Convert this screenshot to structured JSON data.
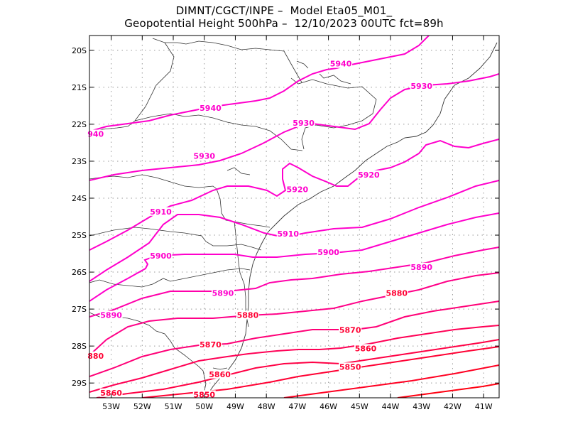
{
  "title": {
    "line1": "DIMNT/CGCT/INPE –  Model Eta05_M01_",
    "line2": "Geopotential Height 500hPa –  12/10/2023 00UTC fct=89h"
  },
  "map": {
    "lon_range": [
      -53.7,
      -40.5
    ],
    "lat_range": [
      -29.4,
      -19.6
    ],
    "lat_ticks": [
      "20S",
      "21S",
      "22S",
      "23S",
      "24S",
      "25S",
      "26S",
      "27S",
      "28S",
      "29S"
    ],
    "lon_ticks": [
      "53W",
      "52W",
      "51W",
      "50W",
      "49W",
      "48W",
      "47W",
      "46W",
      "45W",
      "44W",
      "43W",
      "42W",
      "41W"
    ],
    "grid": "dotted",
    "contour_color_high": "#ff00cc",
    "contour_color_low": "#ff0033",
    "coast_color": "#333333"
  },
  "contour_labels": [
    {
      "text": "5940",
      "lon": -45.6,
      "lat": -20.4
    },
    {
      "text": "5940",
      "lon": -49.8,
      "lat": -21.6
    },
    {
      "text": "940",
      "lon": -53.5,
      "lat": -22.3
    },
    {
      "text": "5930",
      "lon": -43.0,
      "lat": -21.0
    },
    {
      "text": "5930",
      "lon": -46.8,
      "lat": -22.0
    },
    {
      "text": "5930",
      "lon": -50.0,
      "lat": -22.9
    },
    {
      "text": "5920",
      "lon": -44.7,
      "lat": -23.4
    },
    {
      "text": "5920",
      "lon": -47.0,
      "lat": -23.8
    },
    {
      "text": "5910",
      "lon": -51.4,
      "lat": -24.4
    },
    {
      "text": "5910",
      "lon": -47.3,
      "lat": -25.0
    },
    {
      "text": "5900",
      "lon": -51.4,
      "lat": -25.6
    },
    {
      "text": "5900",
      "lon": -46.0,
      "lat": -25.5
    },
    {
      "text": "5890",
      "lon": -43.0,
      "lat": -25.9
    },
    {
      "text": "5890",
      "lon": -49.4,
      "lat": -26.6
    },
    {
      "text": "5890",
      "lon": -53.0,
      "lat": -27.2
    },
    {
      "text": "5880",
      "lon": -43.8,
      "lat": -26.6
    },
    {
      "text": "5880",
      "lon": -48.6,
      "lat": -27.2
    },
    {
      "text": "880",
      "lon": -53.5,
      "lat": -28.3
    },
    {
      "text": "5870",
      "lon": -45.3,
      "lat": -27.6
    },
    {
      "text": "5870",
      "lon": -49.8,
      "lat": -28.0
    },
    {
      "text": "5860",
      "lon": -44.8,
      "lat": -28.1
    },
    {
      "text": "5860",
      "lon": -49.5,
      "lat": -28.8
    },
    {
      "text": "5860",
      "lon": -53.0,
      "lat": -29.3
    },
    {
      "text": "5850",
      "lon": -45.3,
      "lat": -28.6
    },
    {
      "text": "5850",
      "lon": -50.0,
      "lat": -29.35
    }
  ]
}
